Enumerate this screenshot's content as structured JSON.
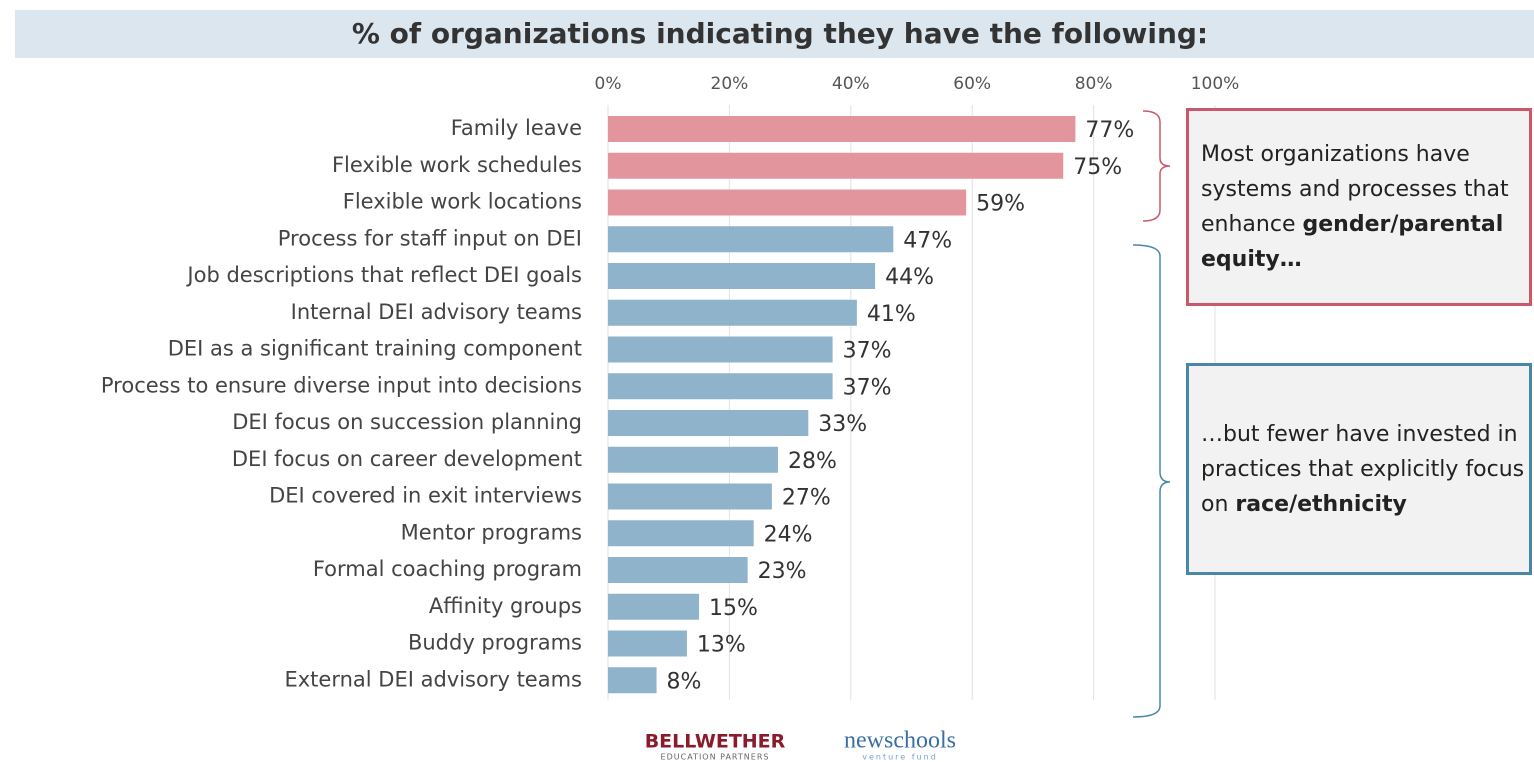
{
  "chart_data": {
    "type": "barh",
    "title": "% of organizations indicating they have the following:",
    "categories": [
      "Family leave",
      "Flexible work schedules",
      "Flexible work locations",
      "Process for staff input on DEI",
      "Job descriptions that reflect DEI goals",
      "Internal DEI advisory teams",
      "DEI as a significant training component",
      "Process to ensure diverse input into decisions",
      "DEI focus on succession planning",
      "DEI focus on career development",
      "DEI covered in exit interviews",
      "Mentor programs",
      "Formal coaching program",
      "Affinity groups",
      "Buddy programs",
      "External DEI advisory teams"
    ],
    "values": [
      77,
      75,
      59,
      47,
      44,
      41,
      37,
      37,
      33,
      28,
      27,
      24,
      23,
      15,
      13,
      8
    ],
    "value_labels": [
      "77%",
      "75%",
      "59%",
      "47%",
      "44%",
      "41%",
      "37%",
      "37%",
      "33%",
      "28%",
      "27%",
      "24%",
      "23%",
      "15%",
      "13%",
      "8%"
    ],
    "colors": [
      "#e3959d",
      "#e3959d",
      "#e3959d",
      "#8fb3ca",
      "#8fb3ca",
      "#8fb3ca",
      "#8fb3ca",
      "#8fb3ca",
      "#8fb3ca",
      "#8fb3ca",
      "#8fb3ca",
      "#8fb3ca",
      "#8fb3ca",
      "#8fb3ca",
      "#8fb3ca",
      "#8fb3ca"
    ],
    "xlim": [
      0,
      100
    ],
    "xticks": [
      {
        "value": 0,
        "label": "0%"
      },
      {
        "value": 20,
        "label": "20%"
      },
      {
        "value": 40,
        "label": "40%"
      },
      {
        "value": 60,
        "label": "60%"
      },
      {
        "value": 80,
        "label": "80%"
      },
      {
        "value": 100,
        "label": "100%"
      }
    ],
    "grid": true,
    "annotations": [
      {
        "text": "Most organizations have systems and processes that enhance",
        "bold": "gender/parental equity…"
      },
      {
        "text": "…but fewer have invested in practices that explicitly focus on",
        "bold": "race/ethnicity"
      }
    ],
    "logos": [
      {
        "name": "BELLWETHER",
        "sub": "EDUCATION PARTNERS"
      },
      {
        "name": "newschools",
        "sub": "venture fund"
      }
    ]
  }
}
